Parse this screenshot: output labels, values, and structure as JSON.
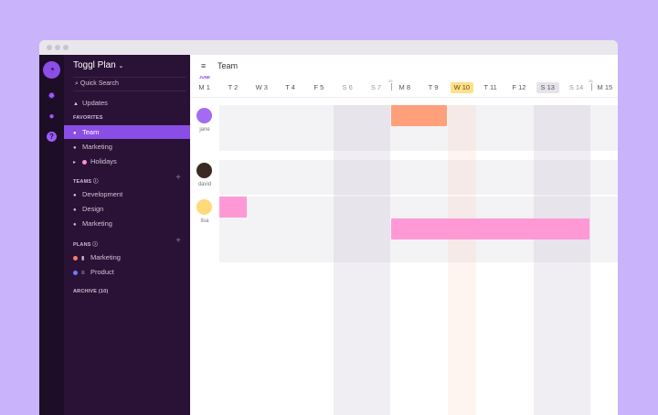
{
  "sidebar": {
    "brand": "Toggl Plan",
    "search": "Quick Search",
    "updates": "Updates",
    "favorites_header": "FAVORITES",
    "favorites": [
      {
        "label": "Team",
        "active": true
      },
      {
        "label": "Marketing"
      },
      {
        "label": "Holidays",
        "color": "#ff8fcf"
      }
    ],
    "teams_header": "TEAMS",
    "teams": [
      "Development",
      "Design",
      "Marketing"
    ],
    "plans_header": "PLANS",
    "plans": [
      {
        "label": "Marketing",
        "color": "#ff7a6b"
      },
      {
        "label": "Product",
        "color": "#6f7bff"
      }
    ],
    "archive": "ARCHIVE (10)"
  },
  "rail_icons": [
    "logo-icon",
    "gear-icon",
    "team-icon",
    "help-icon"
  ],
  "main": {
    "title": "Team",
    "month": "JUNE",
    "days": [
      "M 1",
      "T 2",
      "W 3",
      "T 4",
      "F 5",
      "S 6",
      "S 7",
      "M 8",
      "T 9",
      "W 10",
      "T 11",
      "F 12",
      "S 13",
      "S 14",
      "M 15"
    ],
    "weekends": [
      6,
      7,
      13,
      14
    ],
    "today": 10,
    "highlighted": 13,
    "week_numbers": [
      {
        "label": "25",
        "before_day": 8
      },
      {
        "label": "26",
        "before_day": 15
      }
    ],
    "people": [
      {
        "name": "jane",
        "avatar_color": "#a36cf0"
      },
      {
        "name": "david",
        "avatar_color": "#3b2a24"
      },
      {
        "name": "lisa",
        "avatar_color": "#ffd97a"
      }
    ],
    "tasks": [
      {
        "person": "jane",
        "start": 8,
        "end": 9,
        "color": "#ffa07a"
      },
      {
        "person": "lisa",
        "start": 2,
        "end": 2,
        "color": "#ff99d6"
      },
      {
        "person": "lisa",
        "start": 8,
        "end": 14,
        "color": "#ff99d6"
      }
    ]
  },
  "colors": {
    "accent": "#8a4ee6",
    "today": "#fde08a"
  }
}
